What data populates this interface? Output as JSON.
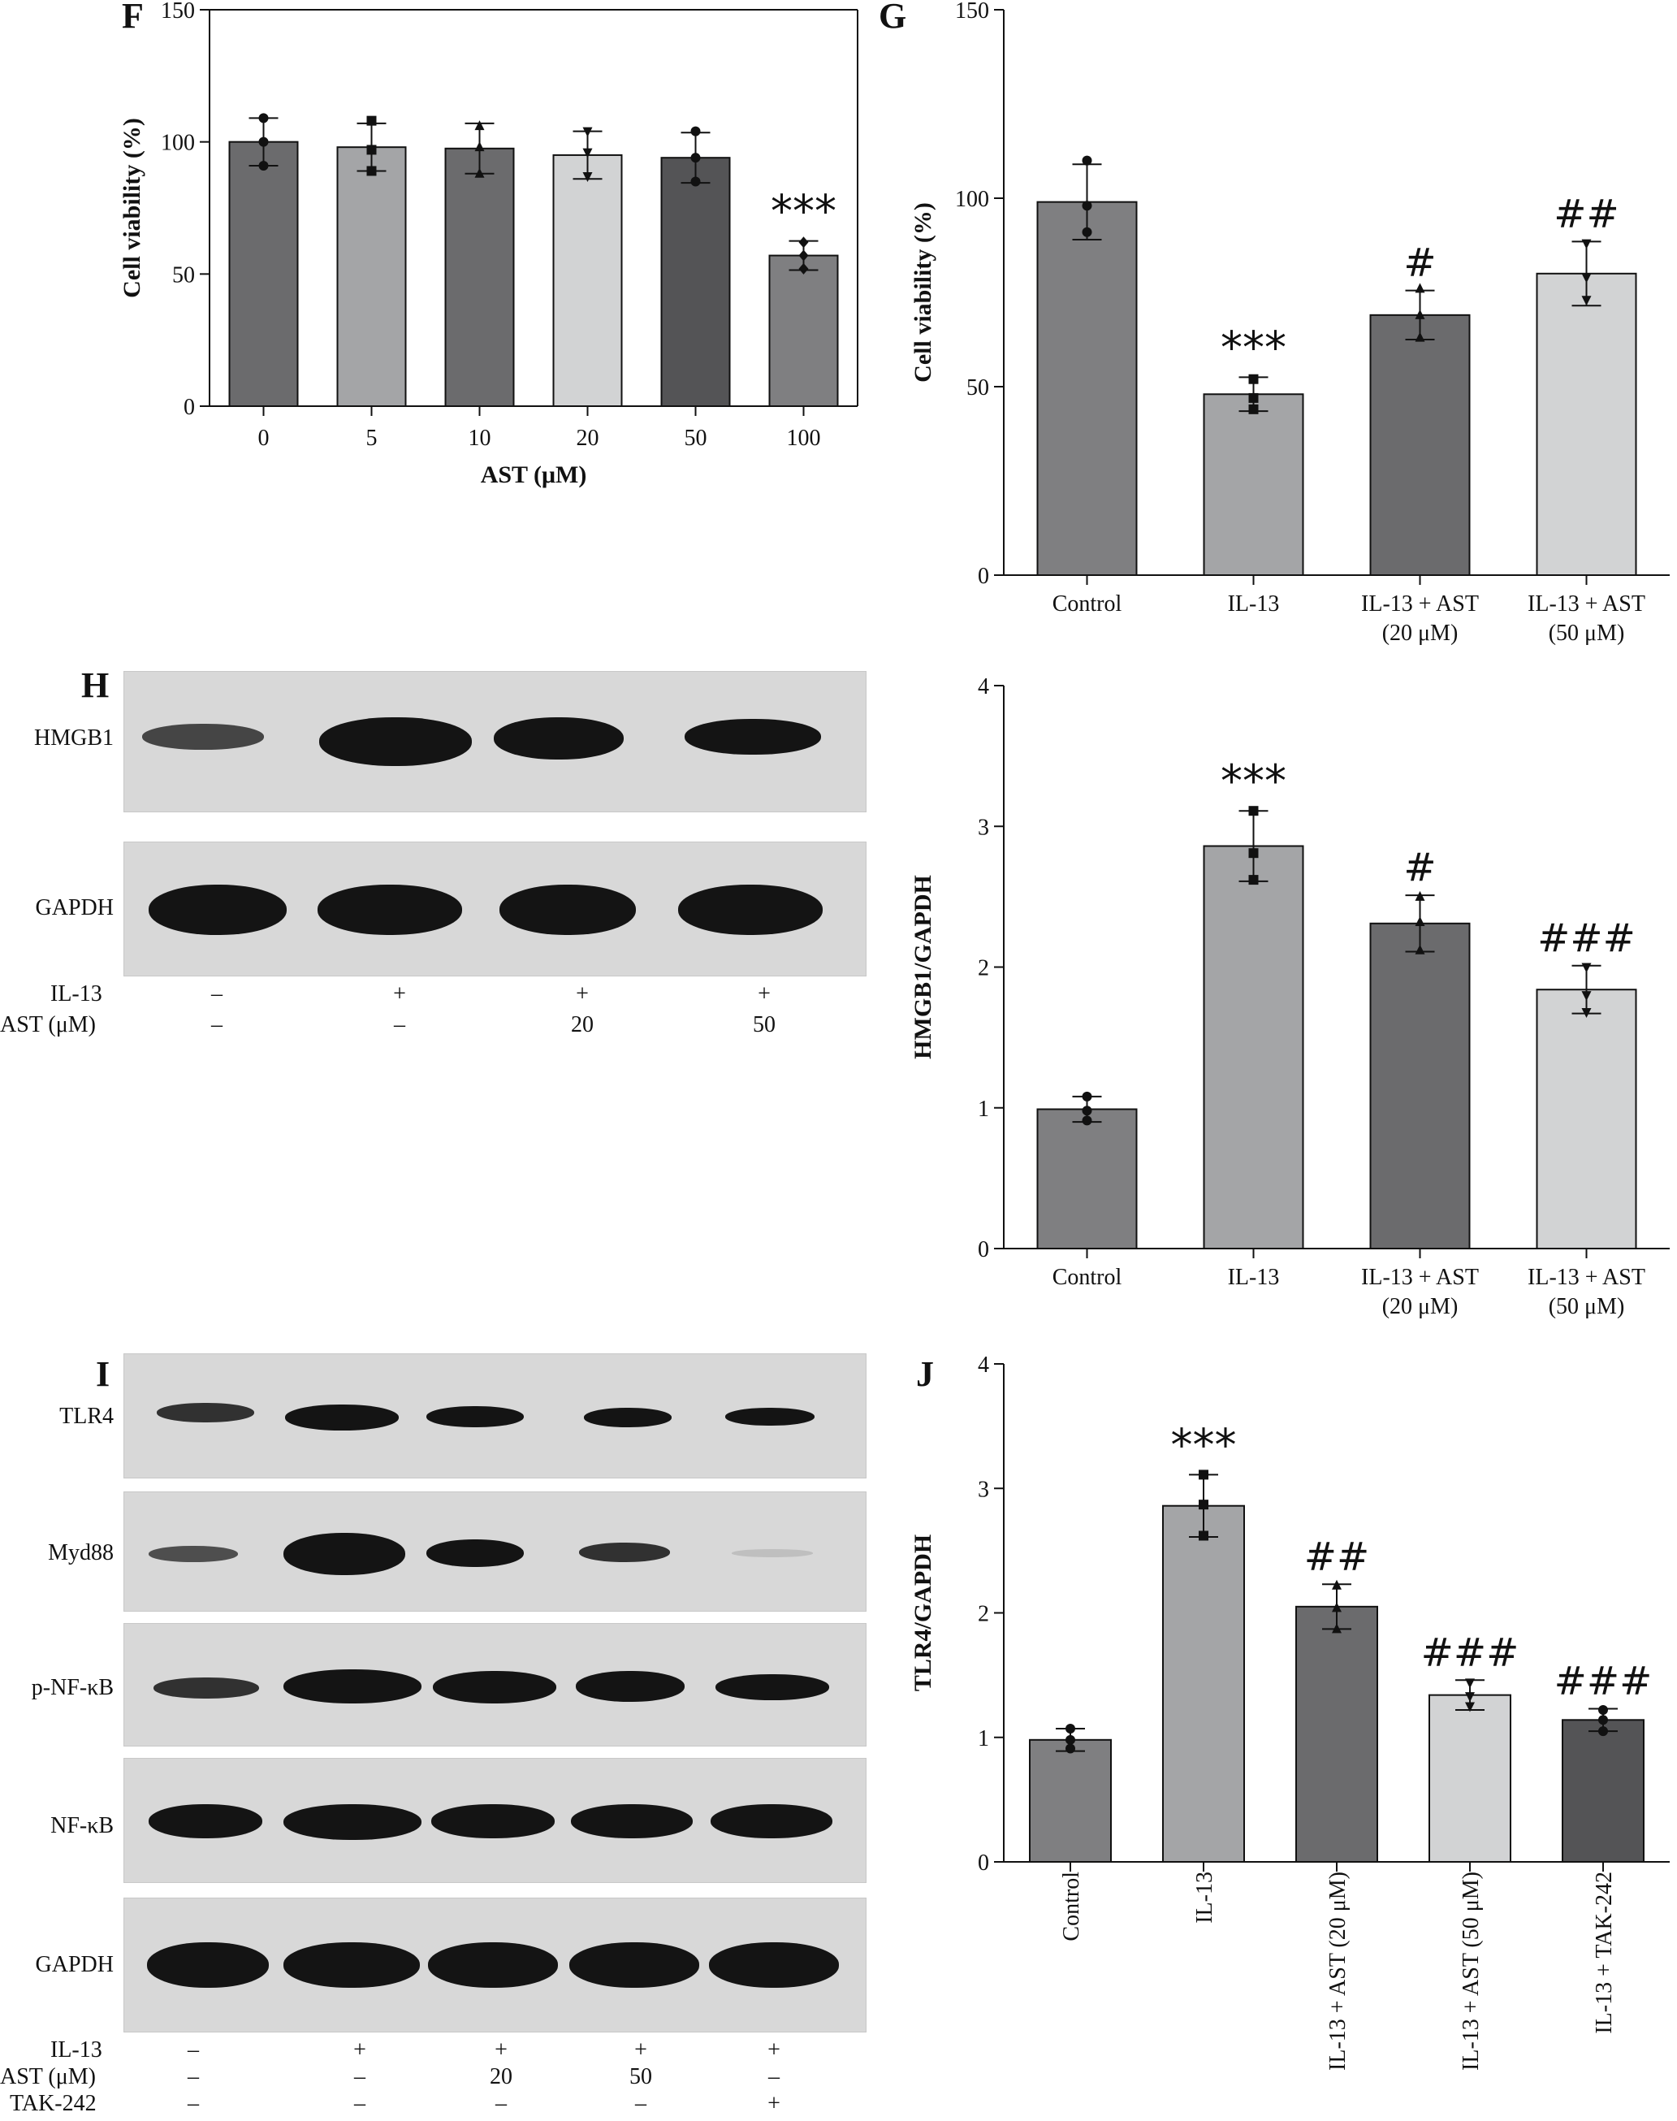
{
  "colors": {
    "bar_dark": "#6b6b6d",
    "bar_mid": "#7f7f81",
    "bar_light": "#a4a5a7",
    "bar_lighter": "#d2d3d4",
    "bar_darkest": "#545456",
    "blot_bg": "#d8d8d8",
    "band": "#141414"
  },
  "panels": {
    "F": "F",
    "G": "G",
    "H": "H",
    "I": "I",
    "J": "J"
  },
  "chart_data": [
    {
      "id": "F",
      "type": "bar",
      "title": "",
      "xlabel": "AST (μM)",
      "ylabel": "Cell viability (%)",
      "ylim": [
        0,
        150
      ],
      "yticks": [
        0,
        50,
        100,
        150
      ],
      "grid": false,
      "categories": [
        "0",
        "5",
        "10",
        "20",
        "50",
        "100"
      ],
      "values": [
        100,
        98,
        97.5,
        95,
        94,
        57
      ],
      "errors": [
        9,
        9,
        9.5,
        9,
        9.5,
        5.5
      ],
      "points": [
        [
          91,
          100,
          109
        ],
        [
          89,
          97,
          108
        ],
        [
          88,
          98,
          106
        ],
        [
          87,
          96,
          104
        ],
        [
          85,
          94,
          104
        ],
        [
          52,
          57,
          62
        ]
      ],
      "markers": [
        "circle",
        "square",
        "triangle-up",
        "triangle-down",
        "circle",
        "diamond"
      ],
      "annotations": [
        "",
        "",
        "",
        "",
        "",
        "***"
      ]
    },
    {
      "id": "G",
      "type": "bar",
      "title": "",
      "xlabel": "",
      "ylabel": "Cell viability (%)",
      "ylim": [
        0,
        150
      ],
      "yticks": [
        0,
        50,
        100,
        150
      ],
      "grid": false,
      "categories": [
        "Control",
        "IL-13",
        "IL-13 + AST|(20 μM)",
        "IL-13 + AST|(50 μM)"
      ],
      "values": [
        99,
        48,
        69,
        80
      ],
      "errors": [
        10,
        4.5,
        6.5,
        8.5
      ],
      "points": [
        [
          91,
          98,
          110
        ],
        [
          44,
          47,
          52
        ],
        [
          63,
          69,
          76
        ],
        [
          73,
          79,
          88
        ]
      ],
      "markers": [
        "circle",
        "square",
        "triangle-up",
        "triangle-down"
      ],
      "annotations": [
        "",
        "***",
        "#",
        "##"
      ]
    },
    {
      "id": "H",
      "type": "bar",
      "title": "",
      "xlabel": "",
      "ylabel": "HMGB1/GAPDH",
      "ylim": [
        0,
        4
      ],
      "yticks": [
        0,
        1,
        2,
        3,
        4
      ],
      "grid": false,
      "categories": [
        "Control",
        "IL-13",
        "IL-13 + AST|(20 μM)",
        "IL-13 + AST|(50 μM)"
      ],
      "values": [
        0.99,
        2.86,
        2.31,
        1.84
      ],
      "errors": [
        0.09,
        0.25,
        0.2,
        0.17
      ],
      "points": [
        [
          0.91,
          0.98,
          1.08
        ],
        [
          2.62,
          2.81,
          3.11
        ],
        [
          2.12,
          2.32,
          2.5
        ],
        [
          1.68,
          1.8,
          2.0
        ]
      ],
      "markers": [
        "circle",
        "square",
        "triangle-up",
        "triangle-down"
      ],
      "annotations": [
        "",
        "***",
        "#",
        "###"
      ]
    },
    {
      "id": "J",
      "type": "bar",
      "title": "",
      "xlabel": "",
      "ylabel": "TLR4/GAPDH",
      "ylim": [
        0,
        4
      ],
      "yticks": [
        0,
        1,
        2,
        3,
        4
      ],
      "grid": false,
      "rotated_labels": true,
      "categories": [
        "Control",
        "IL-13",
        "IL-13 + AST (20 μM)",
        "IL-13 + AST (50 μM)",
        "IL-13 + TAK-242"
      ],
      "values": [
        0.98,
        2.86,
        2.05,
        1.34,
        1.14
      ],
      "errors": [
        0.09,
        0.25,
        0.18,
        0.12,
        0.09
      ],
      "points": [
        [
          0.91,
          0.98,
          1.07
        ],
        [
          2.62,
          2.87,
          3.11
        ],
        [
          1.87,
          2.04,
          2.22
        ],
        [
          1.25,
          1.33,
          1.44
        ],
        [
          1.05,
          1.14,
          1.22
        ]
      ],
      "markers": [
        "circle",
        "square",
        "triangle-up",
        "triangle-down",
        "circle"
      ],
      "annotations": [
        "",
        "***",
        "##",
        "###",
        "###"
      ]
    }
  ],
  "blot_H": {
    "labels": [
      "HMGB1",
      "GAPDH"
    ],
    "conditions": {
      "row1_label": "IL-13",
      "row1": [
        "–",
        "+",
        "+",
        "+"
      ],
      "row2_label": "AST (μM)",
      "row2": [
        "–",
        "–",
        "20",
        "50"
      ]
    }
  },
  "blot_I": {
    "labels": [
      "TLR4",
      "Myd88",
      "p-NF-κB",
      "NF-κB",
      "GAPDH"
    ],
    "conditions": {
      "row1_label": "IL-13",
      "row1": [
        "–",
        "+",
        "+",
        "+",
        "+"
      ],
      "row2_label": "AST (μM)",
      "row2": [
        "–",
        "–",
        "20",
        "50",
        "–"
      ],
      "row3_label": "TAK-242",
      "row3": [
        "–",
        "–",
        "–",
        "–",
        "+"
      ]
    }
  }
}
